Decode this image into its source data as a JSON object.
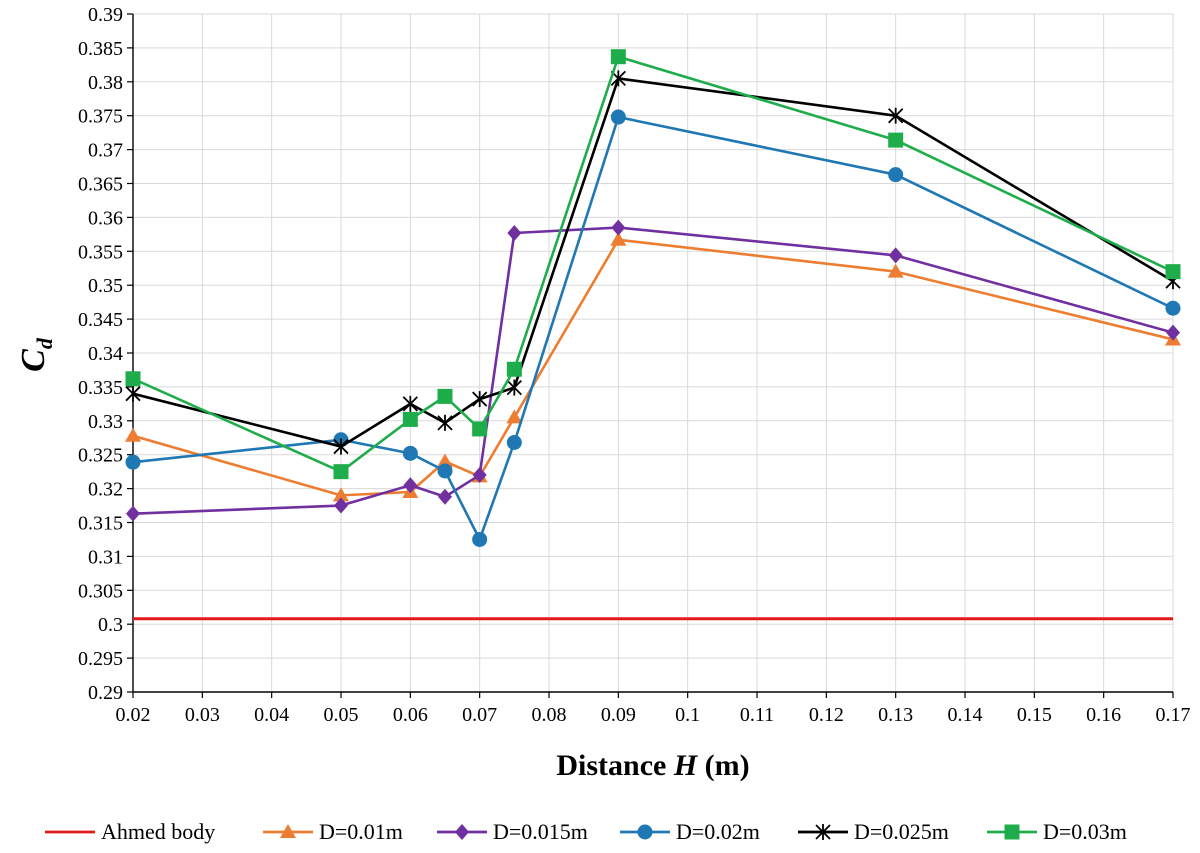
{
  "chart_data": {
    "type": "line",
    "title": "",
    "xlabel_prefix": "Distance ",
    "xlabel_var": "H",
    "xlabel_suffix": " (m)",
    "ylabel_main": "C",
    "ylabel_sub": "d",
    "xlim": [
      0.02,
      0.17
    ],
    "ylim": [
      0.29,
      0.39
    ],
    "x_ticks": [
      "0.02",
      "0.03",
      "0.04",
      "0.05",
      "0.06",
      "0.07",
      "0.08",
      "0.09",
      "0.1",
      "0.11",
      "0.12",
      "0.13",
      "0.14",
      "0.15",
      "0.16",
      "0.17"
    ],
    "y_ticks": [
      "0.29",
      "0.295",
      "0.3",
      "0.305",
      "0.31",
      "0.315",
      "0.32",
      "0.325",
      "0.33",
      "0.335",
      "0.34",
      "0.345",
      "0.35",
      "0.355",
      "0.36",
      "0.365",
      "0.37",
      "0.375",
      "0.38",
      "0.385",
      "0.39"
    ],
    "grid": true,
    "legend_position": "bottom",
    "series": [
      {
        "name": "Ahmed body",
        "color": "#e31a1c",
        "marker": "none",
        "x": [
          0.02,
          0.17
        ],
        "y": [
          0.3008,
          0.3008
        ]
      },
      {
        "name": "D=0.01m",
        "color": "#ed7d31",
        "marker": "triangle",
        "x": [
          0.02,
          0.05,
          0.06,
          0.065,
          0.07,
          0.075,
          0.09,
          0.13,
          0.17
        ],
        "y": [
          0.3278,
          0.319,
          0.3195,
          0.324,
          0.3218,
          0.3305,
          0.3567,
          0.352,
          0.342
        ]
      },
      {
        "name": "D=0.015m",
        "color": "#7030a0",
        "marker": "diamond",
        "x": [
          0.02,
          0.05,
          0.06,
          0.065,
          0.07,
          0.075,
          0.09,
          0.13,
          0.17
        ],
        "y": [
          0.3163,
          0.3175,
          0.3205,
          0.3188,
          0.322,
          0.3577,
          0.3585,
          0.3544,
          0.343
        ]
      },
      {
        "name": "D=0.02m",
        "color": "#1f77b4",
        "marker": "circle",
        "x": [
          0.02,
          0.05,
          0.06,
          0.065,
          0.07,
          0.075,
          0.09,
          0.13,
          0.17
        ],
        "y": [
          0.3239,
          0.3272,
          0.3252,
          0.3226,
          0.3125,
          0.3268,
          0.3748,
          0.3663,
          0.3466
        ]
      },
      {
        "name": "D=0.025m",
        "color": "#000000",
        "marker": "asterisk",
        "x": [
          0.02,
          0.05,
          0.06,
          0.065,
          0.07,
          0.075,
          0.09,
          0.13,
          0.17
        ],
        "y": [
          0.334,
          0.3262,
          0.3325,
          0.3297,
          0.3332,
          0.3349,
          0.3805,
          0.375,
          0.3506
        ]
      },
      {
        "name": "D=0.03m",
        "color": "#1fad4b",
        "marker": "square",
        "x": [
          0.02,
          0.05,
          0.06,
          0.065,
          0.07,
          0.075,
          0.09,
          0.13,
          0.17
        ],
        "y": [
          0.3362,
          0.3225,
          0.3302,
          0.3336,
          0.3288,
          0.3376,
          0.3837,
          0.3714,
          0.352
        ]
      }
    ]
  }
}
